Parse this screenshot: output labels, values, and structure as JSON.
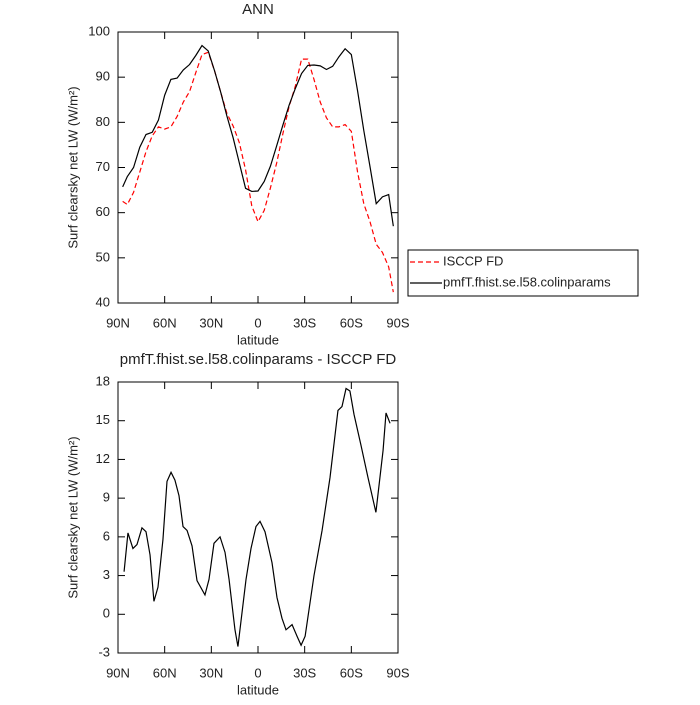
{
  "chart_data": [
    {
      "type": "line",
      "title": "ANN",
      "xlabel": "latitude",
      "ylabel": "Surf clearsky net LW (W/m²)",
      "xlim": [
        90,
        -90
      ],
      "ylim": [
        40,
        100
      ],
      "xticks": [
        {
          "value": 90,
          "label": "90N"
        },
        {
          "value": 60,
          "label": "60N"
        },
        {
          "value": 30,
          "label": "30N"
        },
        0,
        {
          "value": -30,
          "label": "30S"
        },
        {
          "value": -60,
          "label": "60S"
        },
        {
          "value": -90,
          "label": "90S"
        }
      ],
      "yticks": [
        40,
        50,
        60,
        70,
        80,
        90,
        100
      ],
      "legend": "right",
      "x": [
        87,
        84,
        80,
        76,
        72,
        68,
        64,
        60,
        56,
        52,
        48,
        44,
        40,
        36,
        32,
        28,
        24,
        20,
        16,
        12,
        8,
        4,
        0,
        -4,
        -8,
        -12,
        -16,
        -20,
        -24,
        -28,
        -32,
        -36,
        -40,
        -44,
        -48,
        -52,
        -56,
        -60,
        -64,
        -68,
        -72,
        -76,
        -80,
        -84,
        -87
      ],
      "series": [
        {
          "name": "ISCCP FD",
          "color": "#ff0000",
          "line_style": "dashed",
          "values": [
            62.5,
            61.8,
            64.5,
            69,
            73.5,
            77,
            79,
            78.5,
            79,
            81.3,
            84.5,
            86.8,
            91,
            95,
            95.5,
            91.5,
            86.7,
            82,
            79.2,
            75.5,
            69.5,
            61.5,
            58,
            60.5,
            65.5,
            71,
            77.5,
            83.5,
            88,
            94,
            94,
            89.5,
            84.5,
            81,
            79,
            79,
            79.5,
            78,
            69,
            62,
            58,
            53,
            51.2,
            48,
            42.4
          ]
        },
        {
          "name": "pmfT.fhist.se.l58.colinparams",
          "color": "#000000",
          "line_style": "solid",
          "values": [
            65.7,
            68,
            70,
            74.5,
            77.3,
            77.8,
            80.5,
            86,
            89.5,
            89.8,
            91.6,
            92.8,
            94.8,
            97,
            95.8,
            91.5,
            86.7,
            81.4,
            76.6,
            71,
            65.4,
            64.7,
            64.8,
            66.9,
            70.3,
            74.8,
            79.4,
            83.8,
            87.5,
            90.8,
            92.6,
            92.7,
            92.5,
            91.7,
            92.4,
            94.5,
            96.3,
            95,
            87,
            78.2,
            70.2,
            62,
            63.5,
            64,
            57
          ]
        }
      ]
    },
    {
      "type": "line",
      "title": "pmfT.fhist.se.l58.colinparams - ISCCP FD",
      "xlabel": "latitude",
      "ylabel": "Surf clearsky net LW (W/m²)",
      "xlim": [
        90,
        -90
      ],
      "ylim": [
        -3,
        18
      ],
      "xticks": [
        {
          "value": 90,
          "label": "90N"
        },
        {
          "value": 60,
          "label": "60N"
        },
        {
          "value": 30,
          "label": "30N"
        },
        0,
        {
          "value": -30,
          "label": "30S"
        },
        {
          "value": -60,
          "label": "60S"
        },
        {
          "value": -90,
          "label": "90S"
        }
      ],
      "yticks": [
        -3,
        0,
        3,
        6,
        9,
        12,
        15,
        18
      ],
      "x": [
        86.1,
        83.6,
        80.4,
        77.8,
        74.6,
        72,
        69.4,
        66.9,
        64.3,
        61.1,
        58.5,
        55.9,
        53.4,
        50.8,
        48.2,
        45.6,
        42.4,
        39.2,
        34.1,
        31.5,
        28.3,
        24.4,
        21.2,
        18.6,
        14.8,
        12.9,
        7.7,
        4.5,
        1.3,
        -1.3,
        -4.5,
        -9,
        -12.2,
        -15.4,
        -18,
        -21.9,
        -25.1,
        -27.7,
        -30.3,
        -36,
        -41.2,
        -46.3,
        -51.4,
        -54,
        -56.6,
        -59.1,
        -61.7,
        -66.2,
        -70.7,
        -75.8,
        -80.4,
        -82.3,
        -84.9
      ],
      "series": [
        {
          "color": "#000000",
          "line_style": "solid",
          "values": [
            3.3,
            6.3,
            5.1,
            5.4,
            6.7,
            6.4,
            4.6,
            1.0,
            2.1,
            5.8,
            10.3,
            11.0,
            10.4,
            9.2,
            6.8,
            6.5,
            5.3,
            2.6,
            1.5,
            2.7,
            5.5,
            6.0,
            4.8,
            2.7,
            -1.2,
            -2.5,
            2.7,
            5.1,
            6.8,
            7.2,
            6.4,
            4.0,
            1.3,
            -0.3,
            -1.2,
            -0.8,
            -1.7,
            -2.4,
            -1.7,
            3.0,
            6.5,
            10.6,
            15.8,
            16.1,
            17.5,
            17.3,
            15.5,
            13.1,
            10.6,
            7.9,
            12.7,
            15.6,
            14.8
          ]
        }
      ]
    }
  ]
}
